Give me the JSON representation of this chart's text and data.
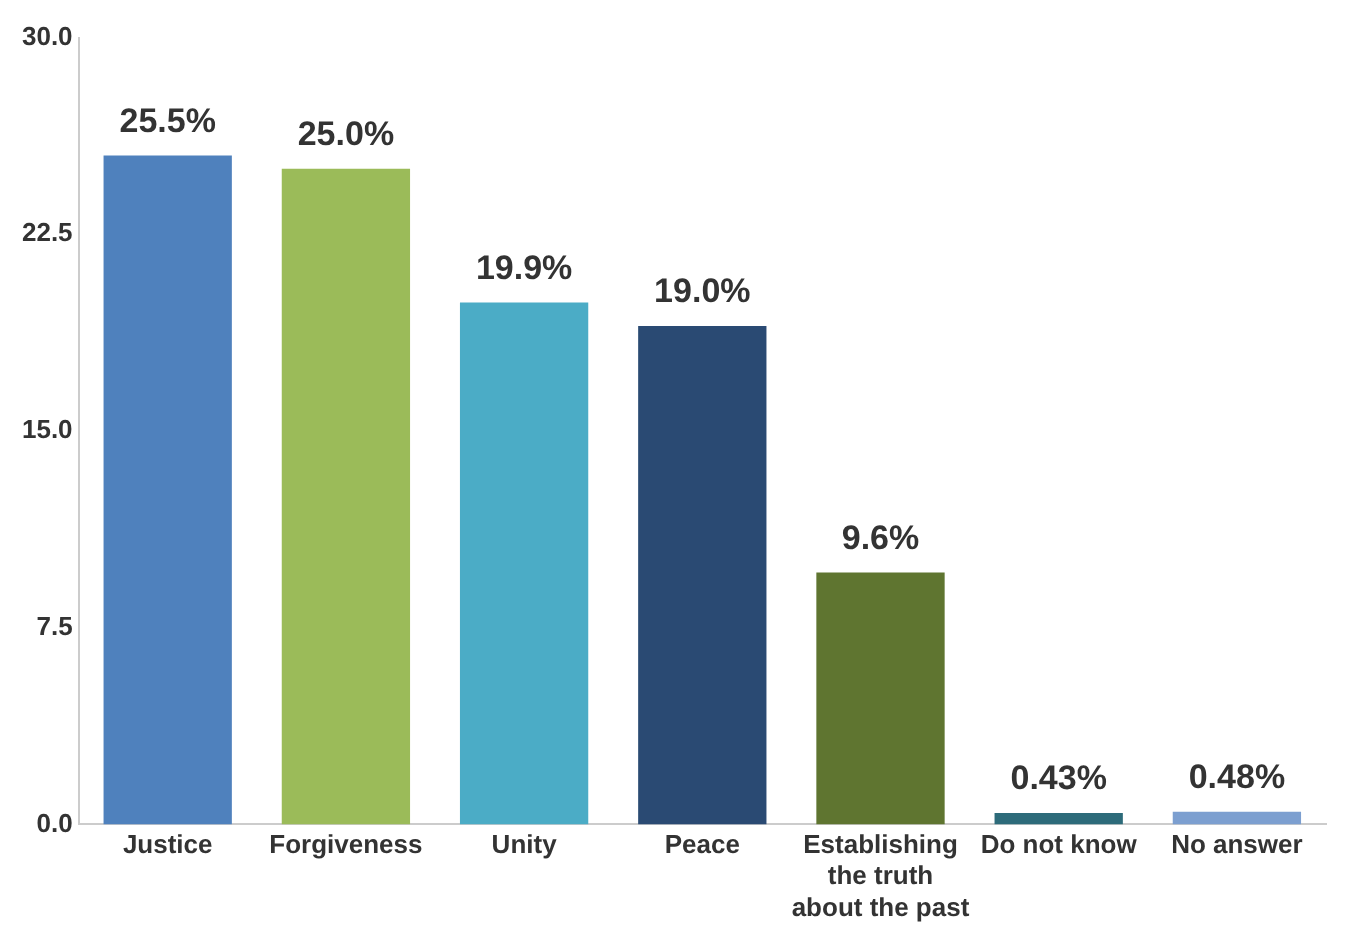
{
  "chart_data": {
    "type": "bar",
    "categories": [
      "Justice",
      "Forgiveness",
      "Unity",
      "Peace",
      "Establishing the truth about the past",
      "Do not know",
      "No answer"
    ],
    "values": [
      25.5,
      25.0,
      19.9,
      19.0,
      9.6,
      0.43,
      0.48
    ],
    "value_labels": [
      "25.5%",
      "25.0%",
      "19.9%",
      "19.0%",
      "9.6%",
      "0.43%",
      "0.48%"
    ],
    "colors": [
      "#4f81bd",
      "#9bbb59",
      "#4bacc6",
      "#2a4a73",
      "#5f7530",
      "#2d6b7a",
      "#7c9fd0"
    ],
    "ylim": [
      0,
      30
    ],
    "yticks": [
      {
        "value": 0,
        "label": "0.0"
      },
      {
        "value": 7.5,
        "label": "7.5"
      },
      {
        "value": 15,
        "label": "15.0"
      },
      {
        "value": 22.5,
        "label": "22.5"
      },
      {
        "value": 30,
        "label": "30.0"
      }
    ],
    "grid": false,
    "legend": false
  }
}
